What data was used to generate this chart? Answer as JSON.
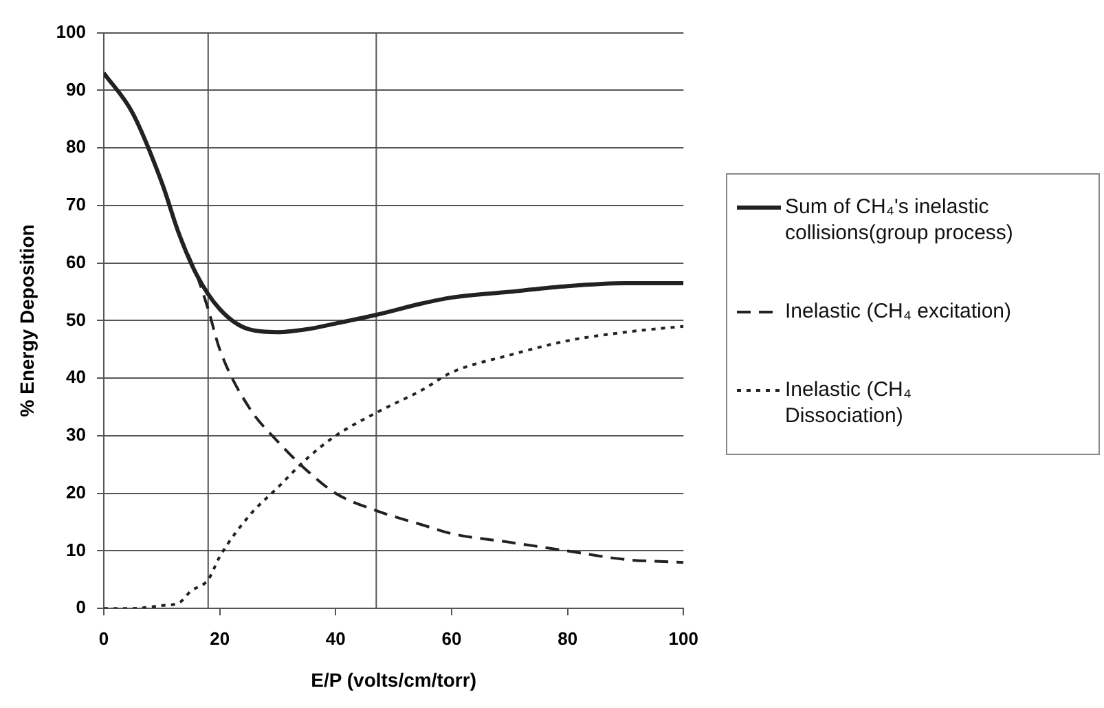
{
  "chart_data": {
    "type": "line",
    "xlabel": "E/P (volts/cm/torr)",
    "ylabel": "% Energy Deposition",
    "xlim": [
      0,
      100
    ],
    "xticks": [
      0,
      20,
      40,
      60,
      80,
      100
    ],
    "ylim": [
      0,
      100
    ],
    "yticks": [
      0,
      10,
      20,
      30,
      40,
      50,
      60,
      70,
      80,
      90,
      100
    ],
    "grid": "y",
    "legend": "right",
    "marker": "none",
    "ref_lines": [
      {
        "axis": "x",
        "value": 18,
        "color": "#555555"
      },
      {
        "axis": "x",
        "value": 47,
        "color": "#555555"
      }
    ],
    "series": [
      {
        "name": "Sum of CH₄'s inelastic collisions(group process)",
        "color": "#222222",
        "line_style": "solid",
        "x": [
          0,
          5,
          10,
          13,
          16,
          20,
          25,
          30,
          35,
          40,
          47,
          55,
          60,
          70,
          80,
          90,
          100
        ],
        "values": [
          93,
          86,
          74,
          65,
          58,
          52,
          48.5,
          48,
          48.5,
          49.5,
          51,
          53,
          54,
          55,
          56,
          56.5,
          56.5
        ]
      },
      {
        "name": "Inelastic (CH₄ excitation)",
        "color": "#222222",
        "line_style": "dashed",
        "x": [
          13,
          16,
          18,
          20,
          25,
          30,
          35,
          40,
          47,
          55,
          60,
          70,
          80,
          90,
          100
        ],
        "values": [
          65,
          58,
          52,
          45,
          35,
          29,
          24,
          20,
          17,
          14.5,
          13,
          11.5,
          10,
          8.5,
          8
        ]
      },
      {
        "name": "Inelastic (CH₄ Dissociation)",
        "color": "#222222",
        "line_style": "dotted",
        "x": [
          0,
          5,
          10,
          13,
          15,
          18,
          20,
          25,
          30,
          35,
          40,
          47,
          55,
          60,
          70,
          80,
          90,
          100
        ],
        "values": [
          0,
          0,
          0.5,
          1,
          3,
          5,
          9,
          16,
          21,
          26,
          30,
          34,
          38,
          41,
          44,
          46.5,
          48,
          49
        ]
      }
    ]
  }
}
